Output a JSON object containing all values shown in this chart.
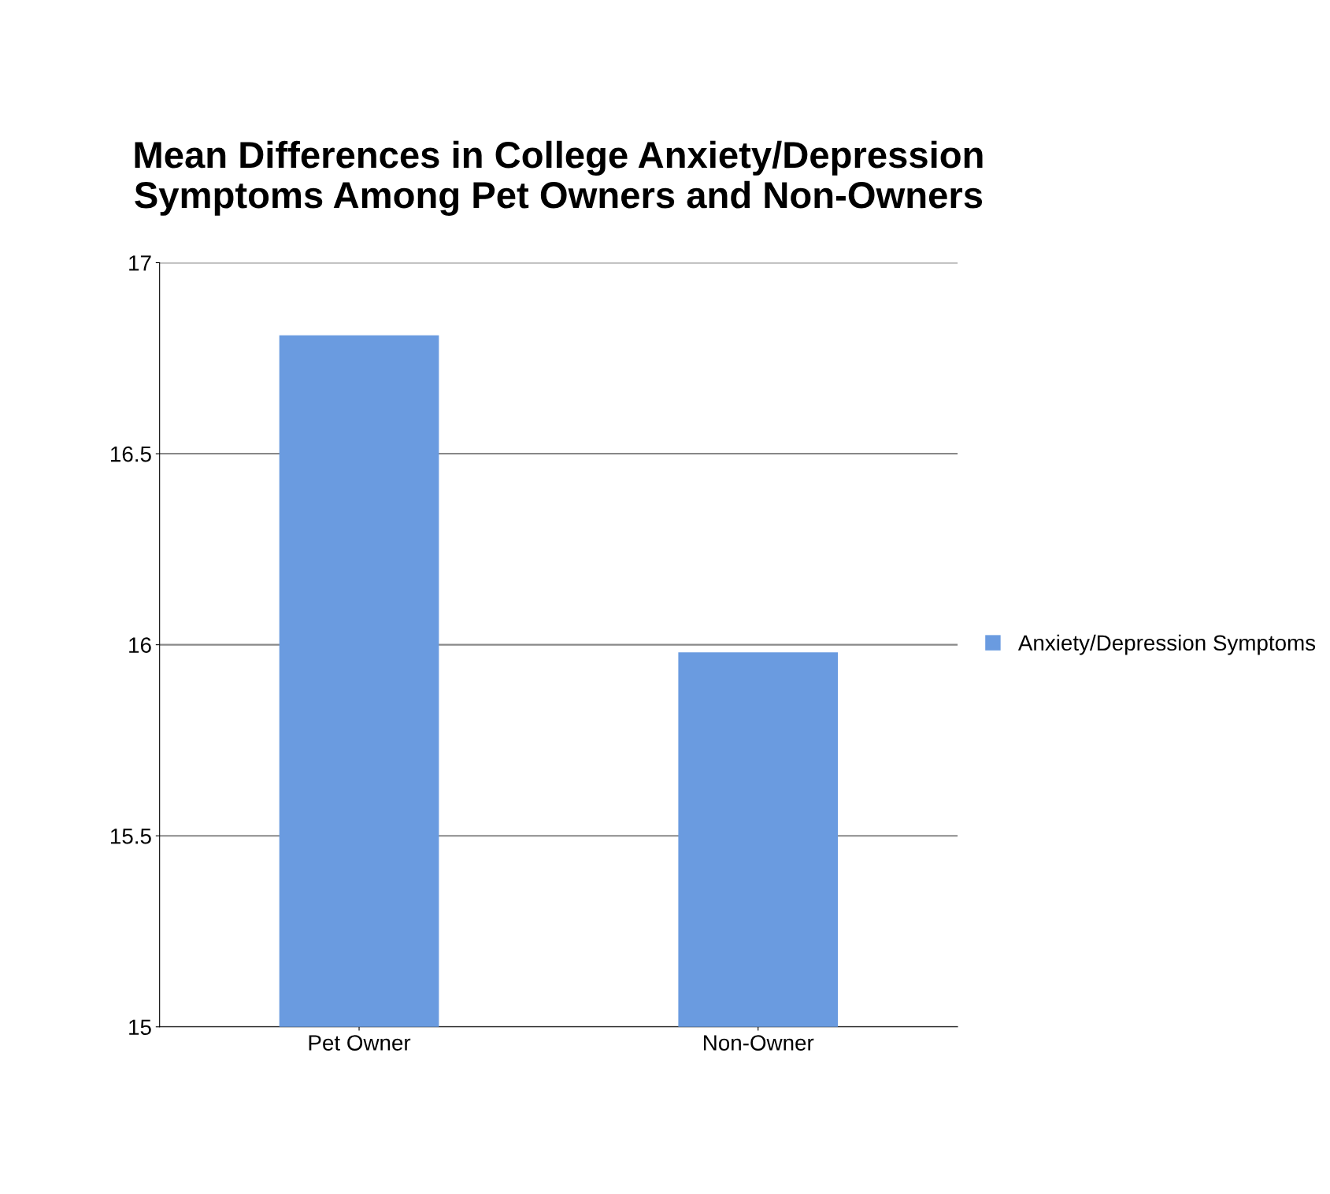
{
  "chart_data": {
    "type": "bar",
    "title": "Mean Differences in College Anxiety/Depression\nSymptoms Among Pet Owners and Non-Owners",
    "categories": [
      "Pet Owner",
      "Non-Owner"
    ],
    "series": [
      {
        "name": "Anxiety/Depression Symptoms",
        "color": "#6a9be0",
        "values": [
          16.81,
          15.98
        ]
      }
    ],
    "ylim": [
      15,
      17
    ],
    "yticks": [
      15,
      15.5,
      16,
      16.5,
      17
    ],
    "grid": "y",
    "legend": "right"
  }
}
